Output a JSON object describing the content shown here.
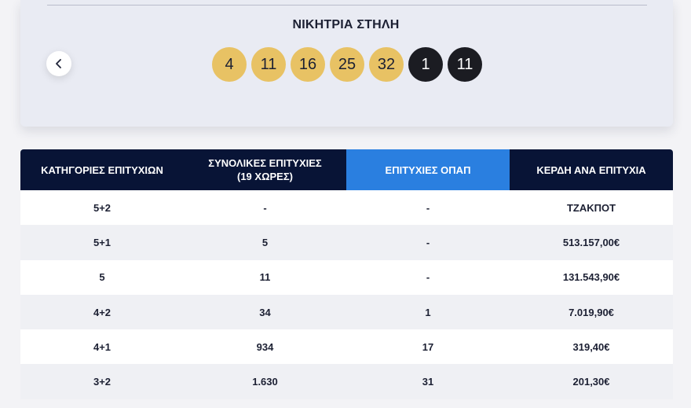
{
  "winning_column": {
    "title": "ΝΙΚΗΤΡΙΑ ΣΤΗΛΗ",
    "prev_icon": "chevron-left-icon",
    "main_numbers": [
      "4",
      "11",
      "16",
      "25",
      "32"
    ],
    "bonus_numbers": [
      "1",
      "11"
    ],
    "colors": {
      "main_ball": "#e8c264",
      "bonus_ball": "#1b1c22"
    }
  },
  "table": {
    "headers": [
      "ΚΑΤΗΓΟΡΙΕΣ ΕΠΙΤΥΧΙΩΝ",
      "ΣΥΝΟΛΙΚΕΣ ΕΠΙΤΥΧΙΕΣ\n(19 ΧΩΡΕΣ)",
      "ΕΠΙΤΥΧΙΕΣ ΟΠΑΠ",
      "ΚΕΡΔΗ ΑΝΑ ΕΠΙΤΥΧΙΑ"
    ],
    "header_colors": {
      "dark": "#081436",
      "highlight": "#2a7fe0"
    },
    "rows": [
      [
        "5+2",
        "-",
        "-",
        "ΤΖΑΚΠΟΤ"
      ],
      [
        "5+1",
        "5",
        "-",
        "513.157,00€"
      ],
      [
        "5",
        "11",
        "-",
        "131.543,90€"
      ],
      [
        "4+2",
        "34",
        "1",
        "7.019,90€"
      ],
      [
        "4+1",
        "934",
        "17",
        "319,40€"
      ],
      [
        "3+2",
        "1.630",
        "31",
        "201,30€"
      ]
    ]
  }
}
